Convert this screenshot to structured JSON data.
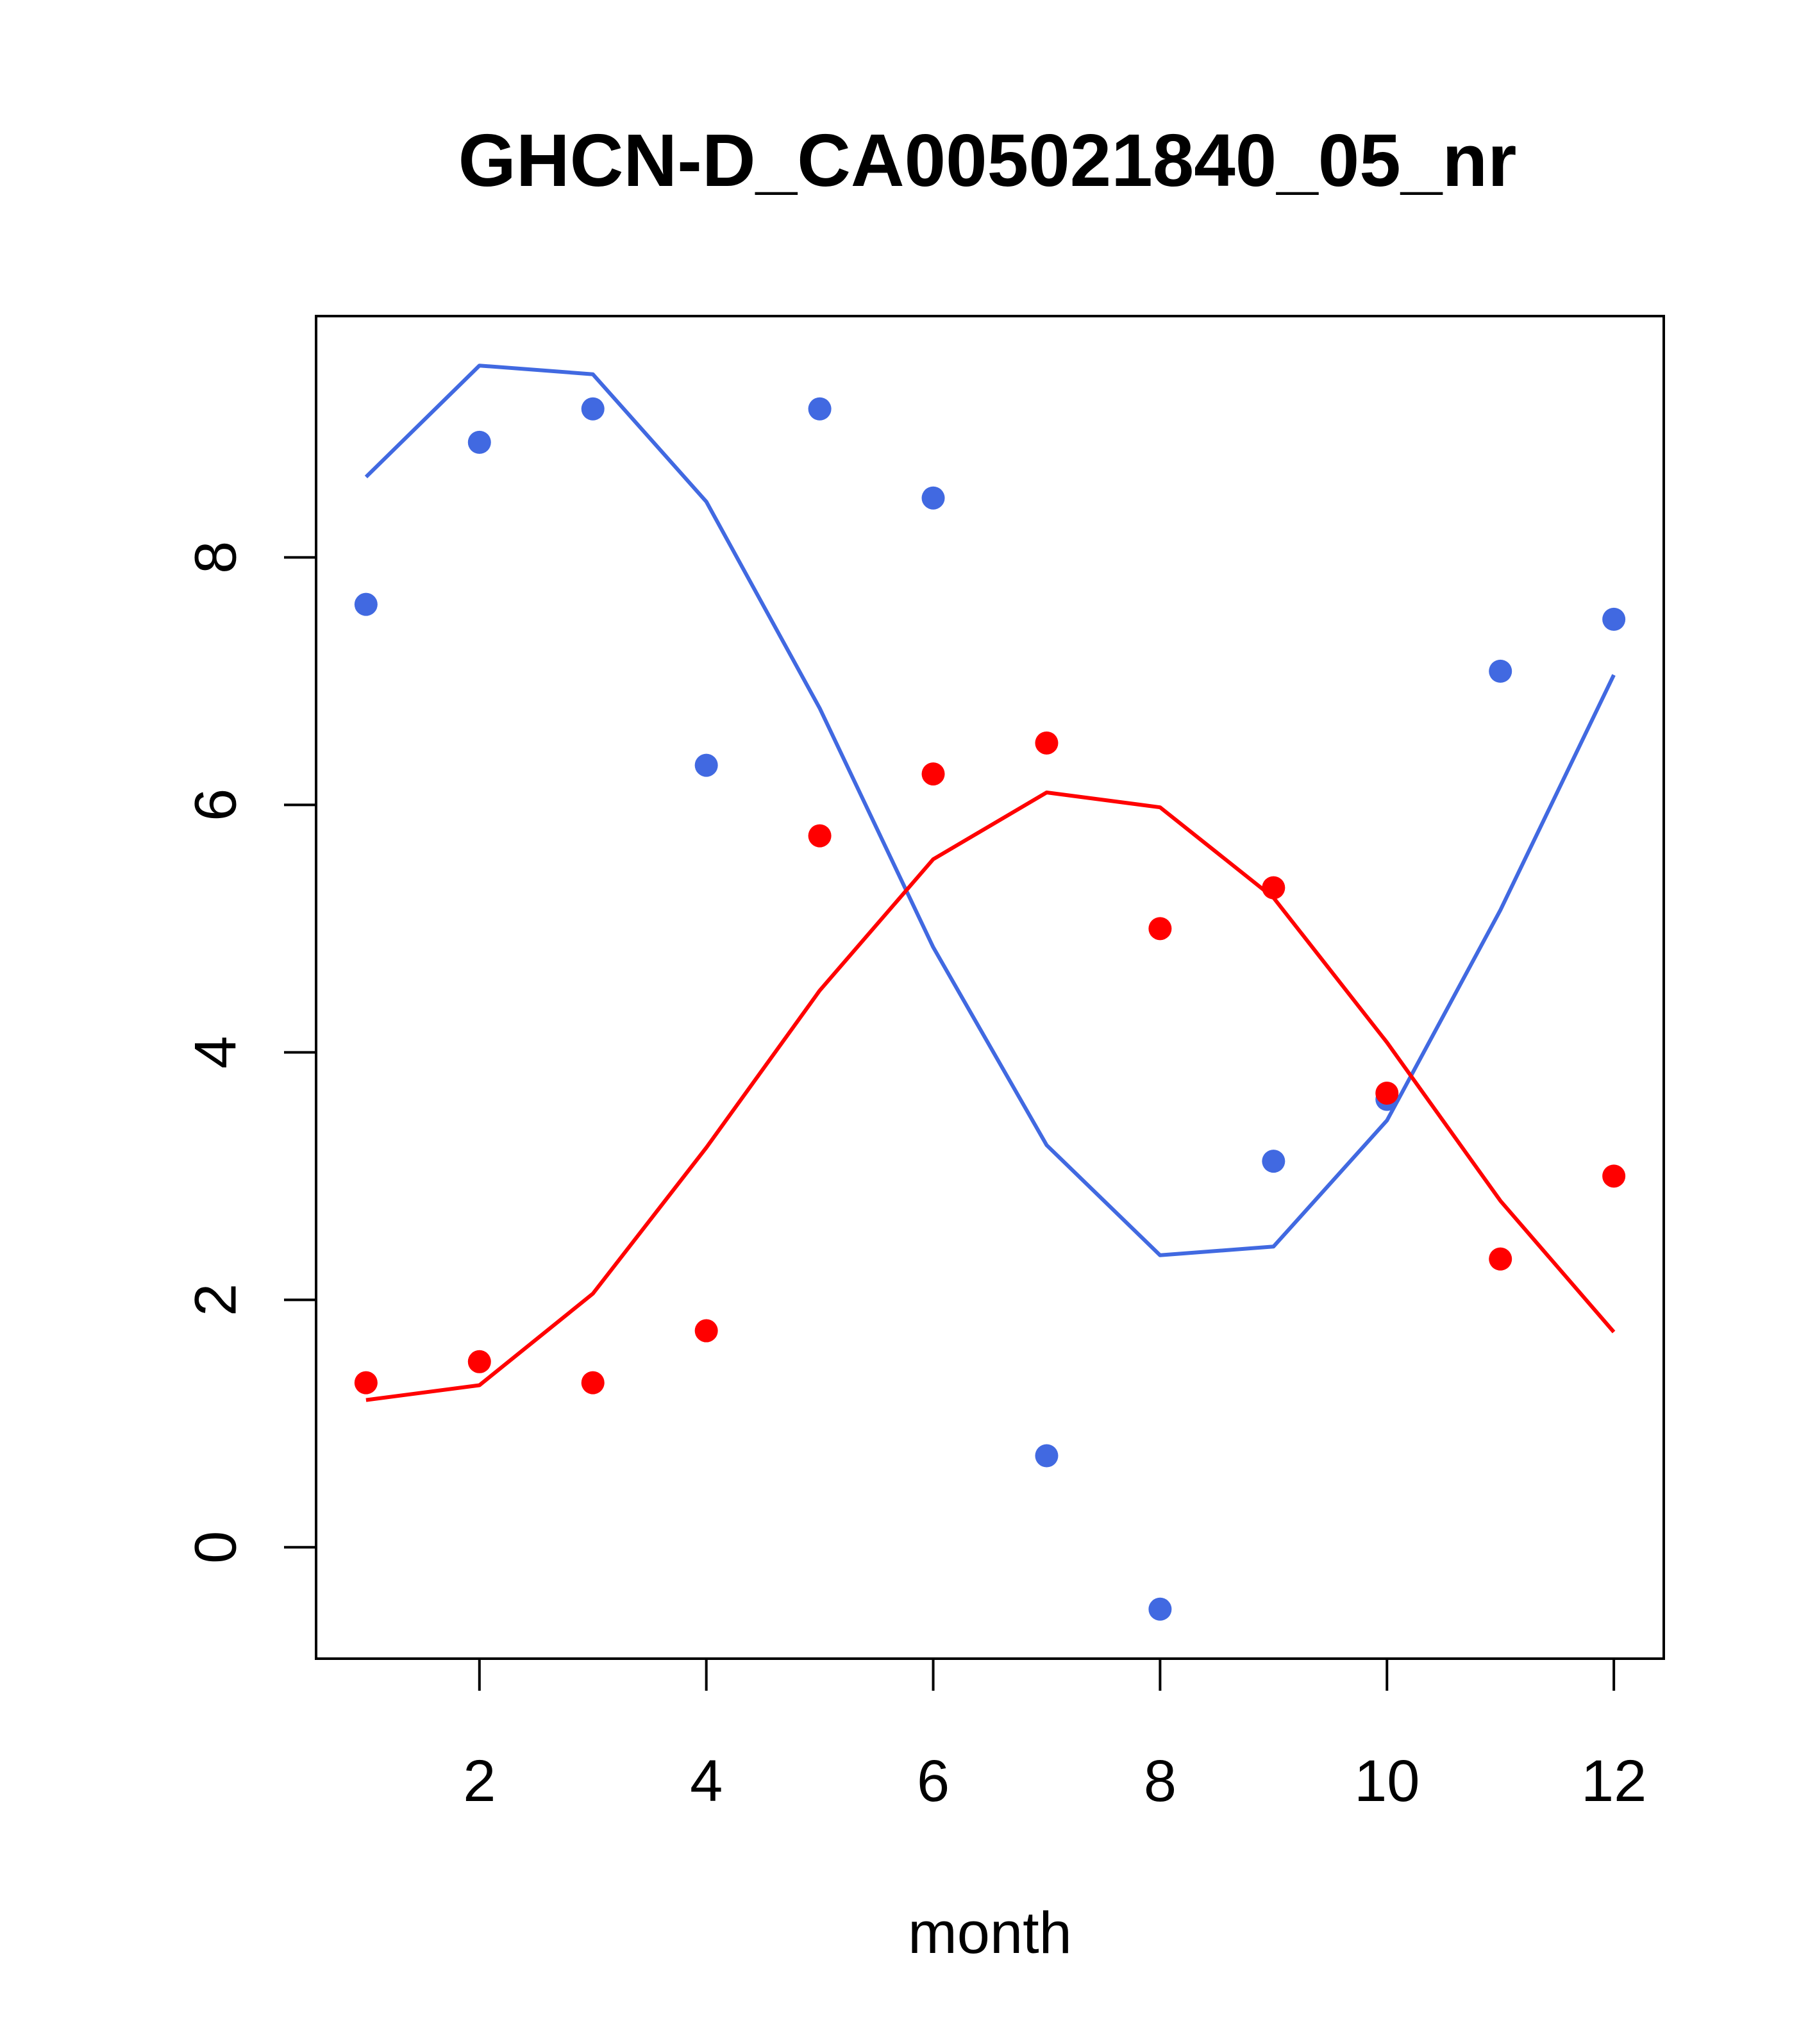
{
  "chart_data": {
    "type": "line",
    "title": "GHCN-D_CA005021840_05_nr",
    "xlabel": "month",
    "ylabel": "",
    "xlim": [
      0.56,
      12.44
    ],
    "ylim": [
      -0.9,
      9.95
    ],
    "xticks": [
      2,
      4,
      6,
      8,
      10,
      12
    ],
    "yticks": [
      0,
      2,
      4,
      6,
      8
    ],
    "grid": false,
    "series": [
      {
        "color": "#4169E1",
        "points_x": [
          1,
          2,
          3,
          4,
          5,
          6,
          7,
          8,
          9,
          10,
          11,
          12
        ],
        "points_y": [
          7.62,
          8.93,
          9.2,
          6.32,
          9.2,
          8.48,
          0.74,
          -0.5,
          3.12,
          3.62,
          7.08,
          7.5
        ],
        "line_x": [
          1,
          2,
          3,
          4,
          5,
          6,
          7,
          8,
          9,
          10,
          11,
          12
        ],
        "line_y": [
          8.65,
          9.55,
          9.48,
          8.45,
          6.78,
          4.85,
          3.25,
          2.36,
          2.43,
          3.45,
          5.15,
          7.05
        ]
      },
      {
        "color": "#FF0000",
        "points_x": [
          1,
          2,
          3,
          4,
          5,
          6,
          7,
          8,
          9,
          10,
          11,
          12
        ],
        "points_y": [
          1.33,
          1.5,
          1.33,
          1.75,
          5.75,
          6.25,
          6.5,
          5.0,
          5.33,
          3.67,
          2.33,
          3.0
        ],
        "line_x": [
          1,
          2,
          3,
          4,
          5,
          6,
          7,
          8,
          9,
          10,
          11,
          12
        ],
        "line_y": [
          1.19,
          1.31,
          2.05,
          3.23,
          4.5,
          5.56,
          6.1,
          5.98,
          5.25,
          4.08,
          2.8,
          1.74
        ]
      }
    ]
  }
}
